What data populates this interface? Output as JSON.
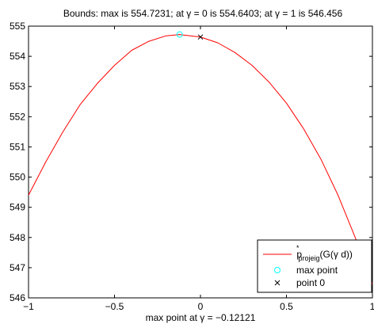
{
  "chart_data": {
    "type": "line",
    "title": "Bounds: max is 554.7231; at γ = 0 is 554.6403; at γ = 1 is 546.456",
    "xlabel": "max point at γ = −0.12121",
    "ylabel": "",
    "xlim": [
      -1,
      1
    ],
    "ylim": [
      546,
      555
    ],
    "x_ticks": [
      -1,
      -0.5,
      0,
      0.5,
      1
    ],
    "x_tick_labels": [
      "−1",
      "−0.5",
      "0",
      "0.5",
      "1"
    ],
    "y_ticks": [
      546,
      547,
      548,
      549,
      550,
      551,
      552,
      553,
      554,
      555
    ],
    "y_tick_labels": [
      "546",
      "547",
      "548",
      "549",
      "550",
      "551",
      "552",
      "553",
      "554",
      "555"
    ],
    "grid": false,
    "legend_position": "bottom-right",
    "series": [
      {
        "name": "p*projeig(G(γ d))",
        "style": "line",
        "color": "#ff0000",
        "x": [
          -1.0,
          -0.9,
          -0.8,
          -0.7,
          -0.6,
          -0.5,
          -0.4,
          -0.3,
          -0.2,
          -0.12121,
          0.0,
          0.1,
          0.2,
          0.3,
          0.4,
          0.5,
          0.6,
          0.7,
          0.8,
          0.9,
          1.0
        ],
        "y": [
          549.4,
          550.5,
          551.5,
          552.4,
          553.1,
          553.7,
          554.2,
          554.5,
          554.68,
          554.7231,
          554.6403,
          554.45,
          554.13,
          553.7,
          553.14,
          552.45,
          551.6,
          550.6,
          549.4,
          548.0,
          546.456
        ]
      },
      {
        "name": "max point",
        "style": "marker",
        "marker": "circle",
        "color": "#00ffff",
        "x": [
          -0.12121
        ],
        "y": [
          554.7231
        ]
      },
      {
        "name": "point 0",
        "style": "marker",
        "marker": "x",
        "color": "#000000",
        "x": [
          0
        ],
        "y": [
          554.6403
        ]
      }
    ],
    "legend": {
      "entries": [
        {
          "base": "p",
          "sup": "*",
          "sub": "projeig",
          "rest": "(G(γ d))"
        },
        {
          "text": "max point"
        },
        {
          "text": "point 0"
        }
      ]
    }
  }
}
